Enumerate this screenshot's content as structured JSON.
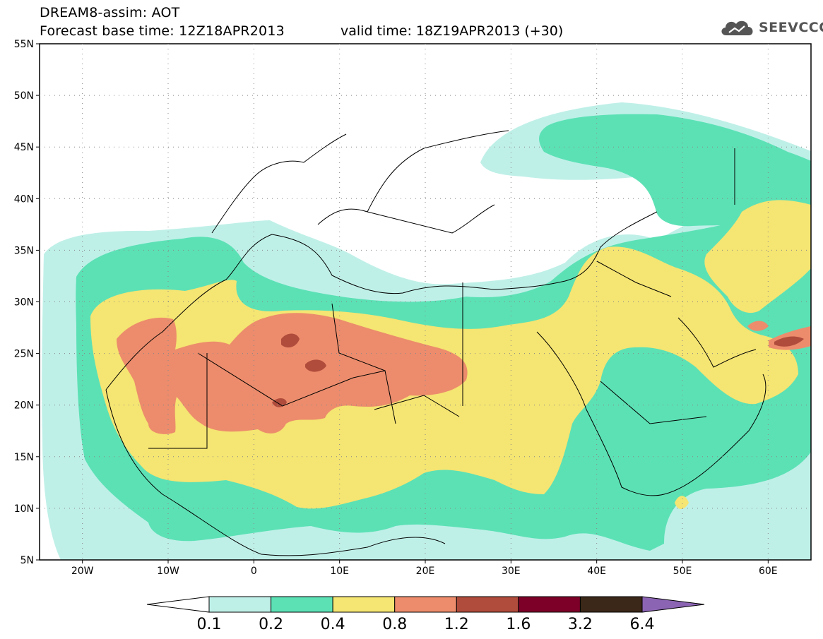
{
  "header": {
    "title_line1": "DREAM8-assim: AOT",
    "title_line2": "Forecast base time: 12Z18APR2013",
    "valid_time": "valid time: 18Z19APR2013 (+30)",
    "logo_text": "SEEVCCC"
  },
  "map": {
    "lat_labels": [
      "55N",
      "50N",
      "45N",
      "40N",
      "35N",
      "30N",
      "25N",
      "20N",
      "15N",
      "10N",
      "5N"
    ],
    "lat_values": [
      55,
      50,
      45,
      40,
      35,
      30,
      25,
      20,
      15,
      10,
      5
    ],
    "lon_labels": [
      "20W",
      "10W",
      "0",
      "10E",
      "20E",
      "30E",
      "40E",
      "50E",
      "60E"
    ],
    "lon_values": [
      -20,
      -10,
      0,
      10,
      20,
      30,
      40,
      50,
      60
    ],
    "lon_range": [
      -25,
      65
    ],
    "lat_range": [
      5,
      55
    ],
    "gridlines": "dotted"
  },
  "colorbar": {
    "labels": [
      "0.1",
      "0.2",
      "0.4",
      "0.8",
      "1.2",
      "1.6",
      "3.2",
      "6.4"
    ],
    "colors": [
      "#bff0e8",
      "#5ce1b5",
      "#f5e572",
      "#ec8c6c",
      "#b04c3c",
      "#7c0028",
      "#3c2818"
    ],
    "under_color": "#ffffff",
    "over_color": "#8c64b4"
  }
}
